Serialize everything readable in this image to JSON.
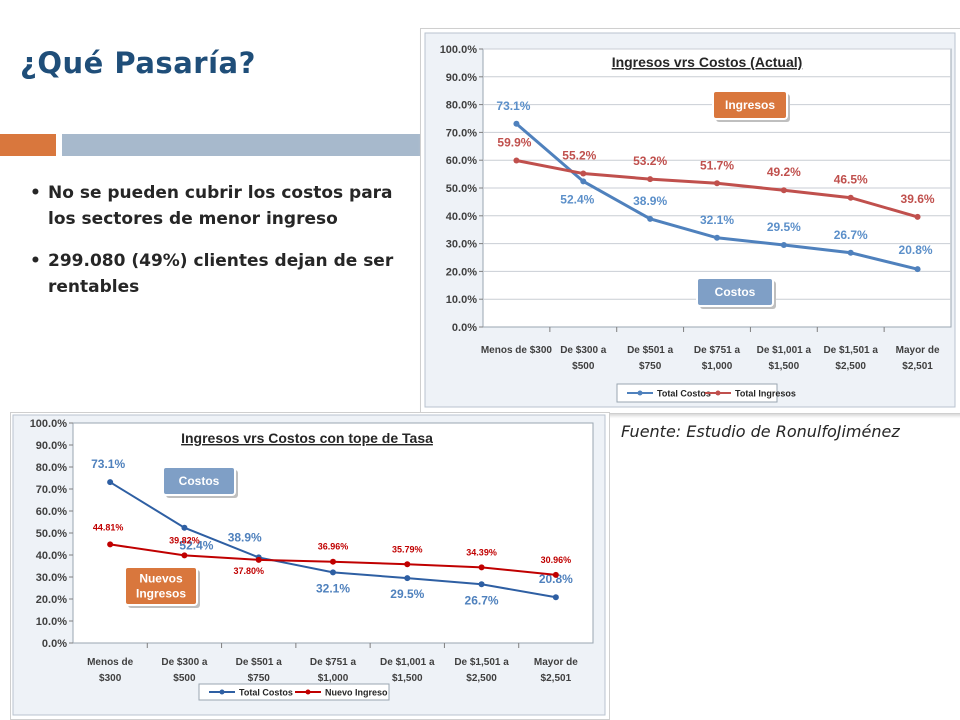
{
  "slide": {
    "title": "¿Qué Pasaría?",
    "bullets": [
      "No se pueden cubrir los costos para los sectores de menor ingreso",
      "299.080  (49%) clientes dejan de ser rentables"
    ],
    "source": "Fuente: Estudio de RonulfoJiménez"
  },
  "chart_data": [
    {
      "type": "line",
      "title": "Ingresos vrs Costos (Actual)",
      "categories": [
        "Menos de $300",
        "De $300 a $500",
        "De $501 a $750",
        "De $751 a $1,000",
        "De $1,001 a $1,500",
        "De $1,501 a $2,500",
        "Mayor de $2,501"
      ],
      "ylim": [
        0,
        100
      ],
      "yticks": [
        "0.0%",
        "10.0%",
        "20.0%",
        "30.0%",
        "40.0%",
        "50.0%",
        "60.0%",
        "70.0%",
        "80.0%",
        "90.0%",
        "100.0%"
      ],
      "grid": true,
      "legend": "bottom",
      "series": [
        {
          "name": "Total Costos",
          "values": [
            73.1,
            52.4,
            38.9,
            32.1,
            29.5,
            26.7,
            20.8
          ],
          "labels": [
            "73.1%",
            "52.4%",
            "38.9%",
            "32.1%",
            "29.5%",
            "26.7%",
            "20.8%"
          ],
          "color": "#4f81bd"
        },
        {
          "name": "Total Ingresos",
          "values": [
            59.9,
            55.2,
            53.2,
            51.7,
            49.2,
            46.5,
            39.6
          ],
          "labels": [
            "59.9%",
            "55.2%",
            "53.2%",
            "51.7%",
            "49.2%",
            "46.5%",
            "39.6%"
          ],
          "color": "#c0504d"
        }
      ],
      "annotations": [
        {
          "text": "Ingresos",
          "color": "#d9773d"
        },
        {
          "text": "Costos",
          "color": "#7f9fc6"
        }
      ]
    },
    {
      "type": "line",
      "title": "Ingresos vrs Costos con tope de Tasa",
      "categories": [
        "Menos de $300",
        "De $300 a $500",
        "De $501 a $750",
        "De $751 a $1,000",
        "De $1,001 a $1,500",
        "De $1,501 a $2,500",
        "Mayor de $2,501"
      ],
      "ylim": [
        0,
        100
      ],
      "yticks": [
        "0.0%",
        "10.0%",
        "20.0%",
        "30.0%",
        "40.0%",
        "50.0%",
        "60.0%",
        "70.0%",
        "80.0%",
        "90.0%",
        "100.0%"
      ],
      "grid": false,
      "legend": "bottom",
      "series": [
        {
          "name": "Total Costos",
          "values": [
            73.1,
            52.4,
            38.9,
            32.1,
            29.5,
            26.7,
            20.8
          ],
          "labels": [
            "73.1%",
            "52.4%",
            "38.9%",
            "32.1%",
            "29.5%",
            "26.7%",
            "20.8%"
          ],
          "color": "#2e5fa3"
        },
        {
          "name": "Nuevo Ingreso",
          "values": [
            44.81,
            39.82,
            37.8,
            36.96,
            35.79,
            34.39,
            30.96
          ],
          "labels": [
            "44.81%",
            "39.82%",
            "37.80%",
            "36.96%",
            "35.79%",
            "34.39%",
            "30.96%"
          ],
          "color": "#c00000"
        }
      ],
      "annotations": [
        {
          "text": "Costos",
          "color": "#7f9fc6"
        },
        {
          "text": "Nuevos Ingresos",
          "color": "#d9773d"
        }
      ]
    }
  ]
}
